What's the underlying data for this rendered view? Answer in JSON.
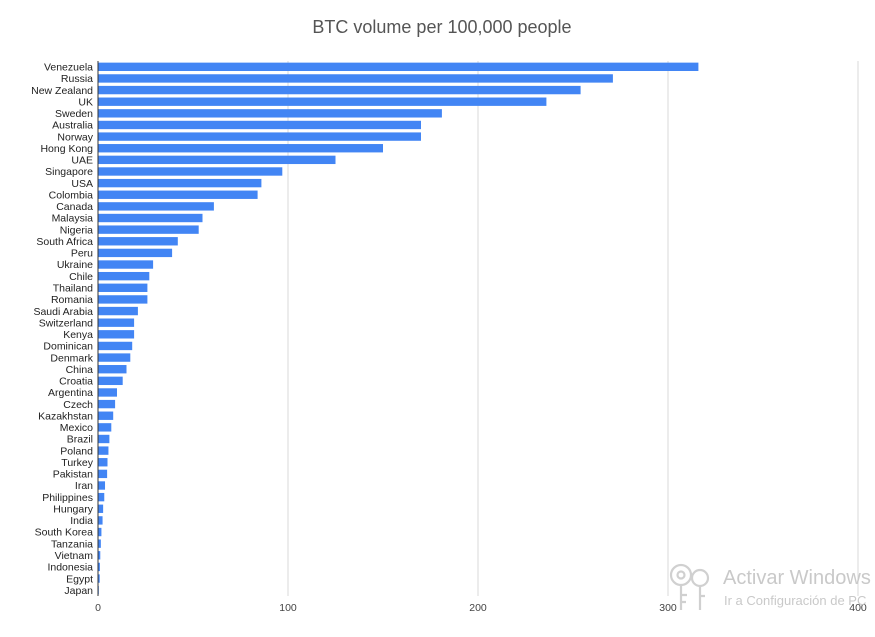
{
  "chart_data": {
    "type": "bar",
    "orientation": "horizontal",
    "title": "BTC volume per 100,000 people",
    "xlabel": "",
    "ylabel": "",
    "xlim": [
      0,
      400
    ],
    "xticks": [
      "0",
      "100",
      "200",
      "300",
      "400"
    ],
    "grid": true,
    "legend": "none",
    "bar_color": "#4285f4",
    "categories": [
      "Venezuela",
      "Russia",
      "New Zealand",
      "UK",
      "Sweden",
      "Australia",
      "Norway",
      "Hong Kong",
      "UAE",
      "Singapore",
      "USA",
      "Colombia",
      "Canada",
      "Malaysia",
      "Nigeria",
      "South Africa",
      "Peru",
      "Ukraine",
      "Chile",
      "Thailand",
      "Romania",
      "Saudi Arabia",
      "Switzerland",
      "Kenya",
      "Dominican",
      "Denmark",
      "China",
      "Croatia",
      "Argentina",
      "Czech",
      "Kazakhstan",
      "Mexico",
      "Brazil",
      "Poland",
      "Turkey",
      "Pakistan",
      "Iran",
      "Philippines",
      "Hungary",
      "India",
      "South Korea",
      "Tanzania",
      "Vietnam",
      "Indonesia",
      "Egypt",
      "Japan"
    ],
    "values": [
      316,
      271,
      254,
      236,
      181,
      170,
      170,
      150,
      125,
      97,
      86,
      84,
      61,
      55,
      53,
      42,
      39,
      29,
      27,
      26,
      26,
      21,
      19,
      19,
      18,
      17,
      15,
      13,
      10,
      9,
      8,
      7,
      6,
      5.5,
      5,
      4.8,
      3.7,
      3.3,
      2.7,
      2.4,
      1.8,
      1.5,
      1.2,
      1.0,
      0.9,
      0.4
    ]
  },
  "watermark": {
    "title": "Activar Windows",
    "subtitle": "Ir a Configuración de PC",
    "icon": "key-icon"
  }
}
